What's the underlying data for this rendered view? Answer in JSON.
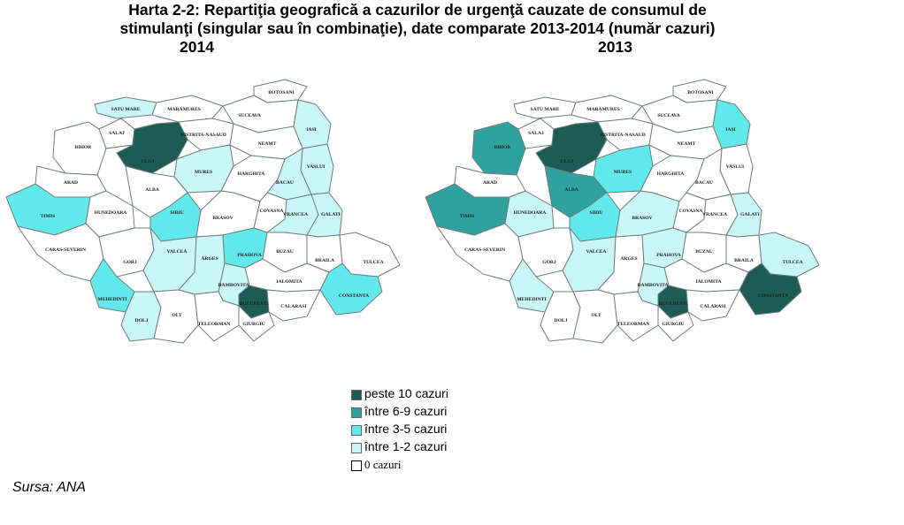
{
  "title": {
    "line1": "Harta 2-2: Repartiţia geografică a cazurilor de urgenţă cauzate de consumul de",
    "line2": "stimulanţi (singular sau în combinaţie), date comparate 2013-2014 (număr cazuri)"
  },
  "colors": {
    "peste_10": "#1d5c54",
    "6_9": "#2fa2a0",
    "3_5": "#62e9ec",
    "1_2": "#c9f6f7",
    "0": "#ffffff"
  },
  "legend": [
    {
      "key": "peste_10",
      "label": "peste 10 cazuri"
    },
    {
      "key": "6_9",
      "label": "între 6-9 cazuri"
    },
    {
      "key": "3_5",
      "label": "între 3-5 cazuri"
    },
    {
      "key": "1_2",
      "label": "între 1-2 cazuri"
    },
    {
      "key": "0",
      "label": "0 cazuri"
    }
  ],
  "source": "Sursa: ANA",
  "map_2014": {
    "year": "2014",
    "counties": {
      "botosani": {
        "label": "BOTOSANI",
        "class": "0"
      },
      "satu_mare": {
        "label": "SATU MARE",
        "class": "1_2"
      },
      "maramures": {
        "label": "MARAMURES",
        "class": "0"
      },
      "suceava": {
        "label": "SUCEAVA",
        "class": "0"
      },
      "bihor": {
        "label": "BIHOR",
        "class": "0"
      },
      "salaj": {
        "label": "SALAJ",
        "class": "0"
      },
      "bistrita_nasaud": {
        "label": "BISTRITA-NASAUD",
        "class": "0"
      },
      "iasi": {
        "label": "IASI",
        "class": "1_2"
      },
      "cluj": {
        "label": "CLUJ",
        "class": "peste_10"
      },
      "neamt": {
        "label": "NEAMT",
        "class": "0"
      },
      "vaslui": {
        "label": "VASLUI",
        "class": "1_2"
      },
      "arad": {
        "label": "ARAD",
        "class": "0"
      },
      "mures": {
        "label": "MURES",
        "class": "1_2"
      },
      "harghita": {
        "label": "HARGHITA",
        "class": "0"
      },
      "bacau": {
        "label": "BACAU",
        "class": "1_2"
      },
      "alba": {
        "label": "ALBA",
        "class": "0"
      },
      "timis": {
        "label": "TIMIS",
        "class": "3_5"
      },
      "hunedoara": {
        "label": "HUNEDOARA",
        "class": "0"
      },
      "sibiu": {
        "label": "SIBIU",
        "class": "3_5"
      },
      "covasna": {
        "label": "COVASNA",
        "class": "0"
      },
      "vrancea": {
        "label": "VRANCEA",
        "class": "1_2"
      },
      "galati": {
        "label": "GALATI",
        "class": "1_2"
      },
      "brasov": {
        "label": "BRASOV",
        "class": "0"
      },
      "caras_severin": {
        "label": "CARAS-SEVERIN",
        "class": "0"
      },
      "gorj": {
        "label": "GORJ",
        "class": "0"
      },
      "valcea": {
        "label": "VALCEA",
        "class": "1_2"
      },
      "arges": {
        "label": "ARGES",
        "class": "1_2"
      },
      "prahova": {
        "label": "PRAHOVA",
        "class": "3_5"
      },
      "buzau": {
        "label": "BUZAU",
        "class": "0"
      },
      "braila": {
        "label": "BRAILA",
        "class": "0"
      },
      "tulcea": {
        "label": "TULCEA",
        "class": "0"
      },
      "mehedinti": {
        "label": "MEHEDINTI",
        "class": "3_5"
      },
      "dambovita": {
        "label": "DAMBOVITA",
        "class": "1_2"
      },
      "bucuresti": {
        "label": "BUCURESTI",
        "class": "peste_10"
      },
      "ialomita": {
        "label": "IALOMITA",
        "class": "0"
      },
      "constanta": {
        "label": "CONSTANTA",
        "class": "3_5"
      },
      "dolj": {
        "label": "DOLJ",
        "class": "1_2"
      },
      "olt": {
        "label": "OLT",
        "class": "0"
      },
      "teleorman": {
        "label": "TELEORMAN",
        "class": "0"
      },
      "giurgiu": {
        "label": "GIURGIU",
        "class": "0"
      },
      "calarasi": {
        "label": "CALARASI",
        "class": "0"
      }
    }
  },
  "map_2013": {
    "year": "2013",
    "counties": {
      "botosani": {
        "label": "BOTOSANI",
        "class": "0"
      },
      "satu_mare": {
        "label": "SATU MARE",
        "class": "0"
      },
      "maramures": {
        "label": "MARAMURES",
        "class": "0"
      },
      "suceava": {
        "label": "SUCEAVA",
        "class": "0"
      },
      "bihor": {
        "label": "BIHOR",
        "class": "6_9"
      },
      "salaj": {
        "label": "SALAJ",
        "class": "0"
      },
      "bistrita_nasaud": {
        "label": "BISTRITA-NASAUD",
        "class": "0"
      },
      "iasi": {
        "label": "IASI",
        "class": "3_5"
      },
      "cluj": {
        "label": "CLUJ",
        "class": "peste_10"
      },
      "neamt": {
        "label": "NEAMT",
        "class": "0"
      },
      "vaslui": {
        "label": "VASLUI",
        "class": "0"
      },
      "arad": {
        "label": "ARAD",
        "class": "0"
      },
      "mures": {
        "label": "MURES",
        "class": "3_5"
      },
      "harghita": {
        "label": "HARGHITA",
        "class": "0"
      },
      "bacau": {
        "label": "BACAU",
        "class": "0"
      },
      "alba": {
        "label": "ALBA",
        "class": "6_9"
      },
      "timis": {
        "label": "TIMIS",
        "class": "6_9"
      },
      "hunedoara": {
        "label": "HUNEDOARA",
        "class": "1_2"
      },
      "sibiu": {
        "label": "SIBIU",
        "class": "3_5"
      },
      "covasna": {
        "label": "COVASNA",
        "class": "0"
      },
      "vrancea": {
        "label": "VRANCEA",
        "class": "0"
      },
      "galati": {
        "label": "GALATI",
        "class": "1_2"
      },
      "brasov": {
        "label": "BRASOV",
        "class": "1_2"
      },
      "caras_severin": {
        "label": "CARAS-SEVERIN",
        "class": "0"
      },
      "gorj": {
        "label": "GORJ",
        "class": "0"
      },
      "valcea": {
        "label": "VALCEA",
        "class": "1_2"
      },
      "arges": {
        "label": "ARGES",
        "class": "0"
      },
      "prahova": {
        "label": "PRAHOVA",
        "class": "1_2"
      },
      "buzau": {
        "label": "BUZAU",
        "class": "0"
      },
      "braila": {
        "label": "BRAILA",
        "class": "0"
      },
      "tulcea": {
        "label": "TULCEA",
        "class": "1_2"
      },
      "mehedinti": {
        "label": "MEHEDINTI",
        "class": "1_2"
      },
      "dambovita": {
        "label": "DAMBOVITA",
        "class": "1_2"
      },
      "bucuresti": {
        "label": "BUCURESTI",
        "class": "peste_10"
      },
      "ialomita": {
        "label": "IALOMITA",
        "class": "0"
      },
      "constanta": {
        "label": "CONSTANTA",
        "class": "peste_10"
      },
      "dolj": {
        "label": "DOLJ",
        "class": "0"
      },
      "olt": {
        "label": "OLT",
        "class": "0"
      },
      "teleorman": {
        "label": "TELEORMAN",
        "class": "0"
      },
      "giurgiu": {
        "label": "GIURGIU",
        "class": "0"
      },
      "calarasi": {
        "label": "CALARASI",
        "class": "0"
      }
    }
  }
}
